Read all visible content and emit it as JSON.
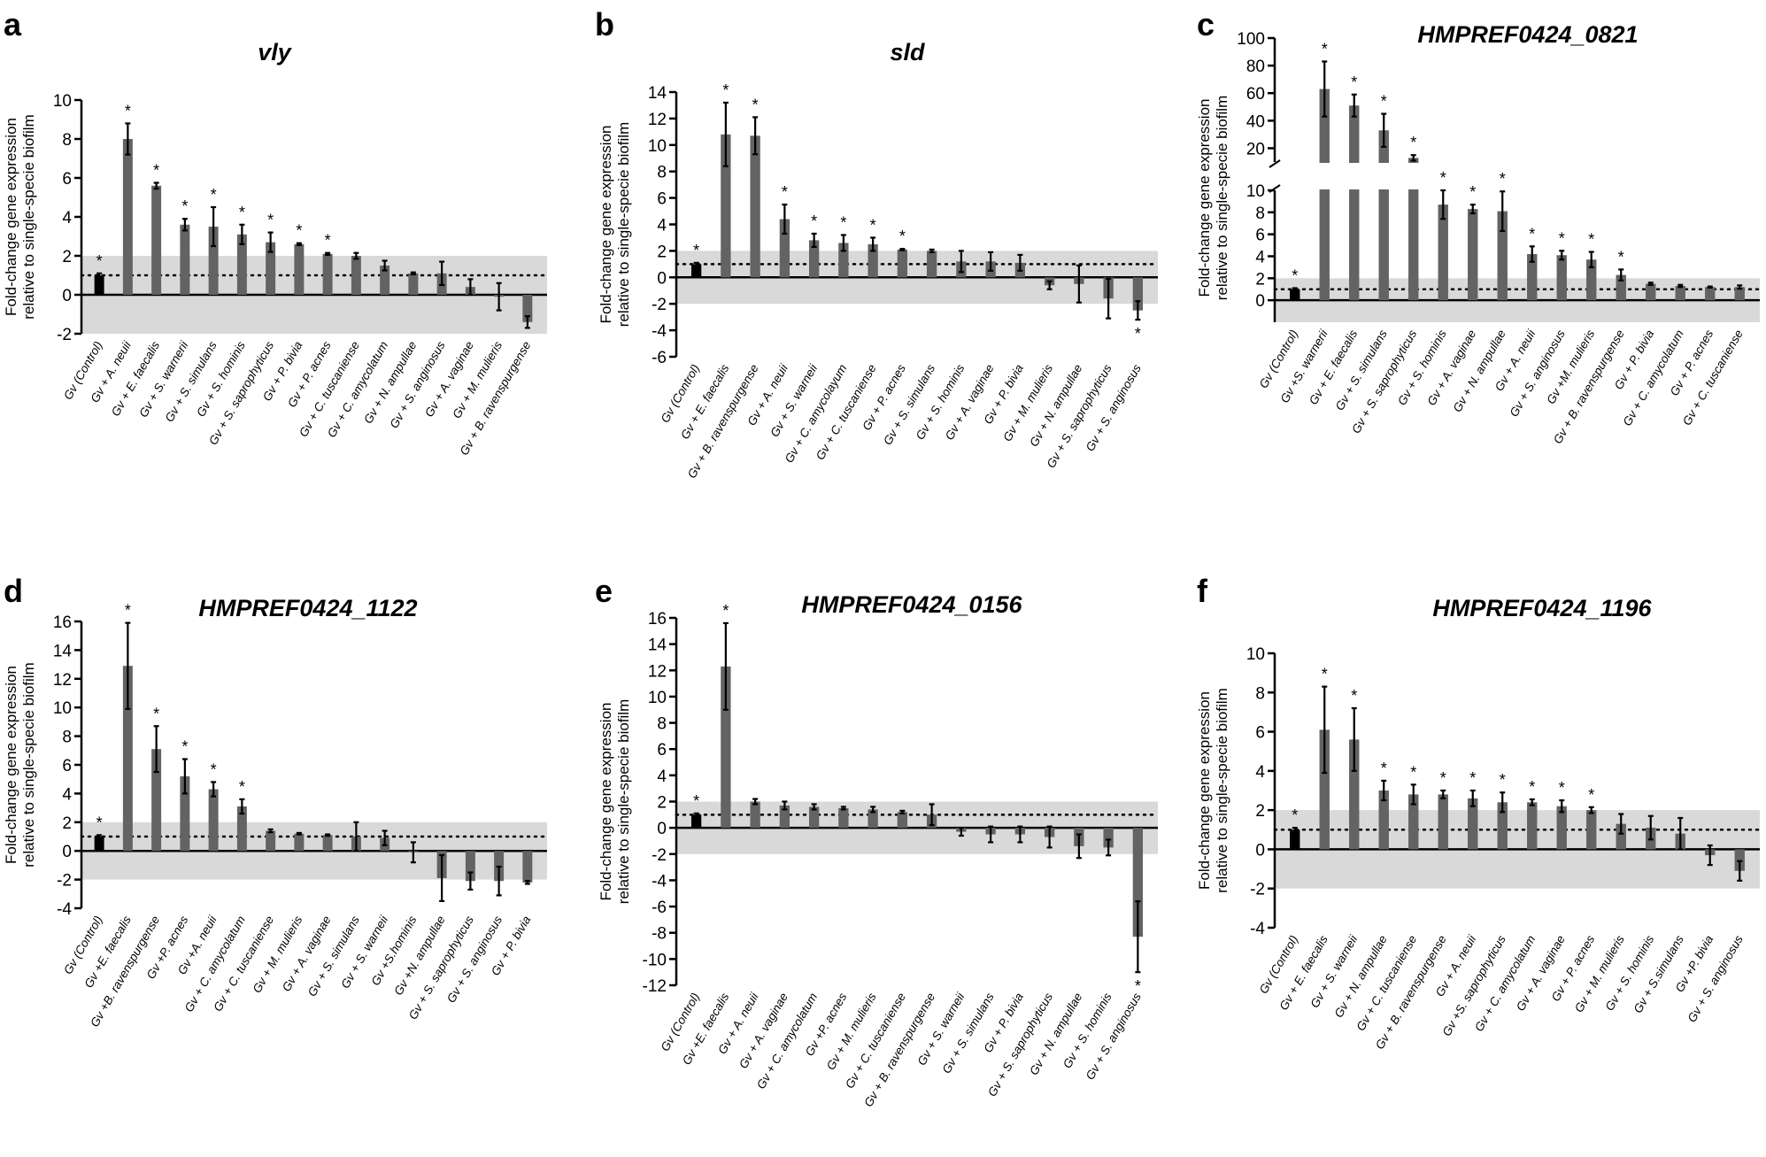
{
  "chart_data": [
    {
      "type": "bar",
      "panel_letter": "a",
      "title": "vly",
      "ylabel_lines": [
        "Fold-change gene expression",
        "relative to single-specie biofilm"
      ],
      "ylim": [
        -2,
        10
      ],
      "yticks": [
        -2,
        0,
        2,
        4,
        6,
        8,
        10
      ],
      "categories": [
        "Gv (Control)",
        "Gv + A. neuii",
        "Gv + E. faecalis",
        "Gv + S. warnerii",
        "Gv + S. simulans",
        "Gv + S. hominis",
        "Gv + S. saprophyticus",
        "Gv + P. bivia",
        "Gv + P. acnes",
        "Gv + C. tuscaniense",
        "Gv + C. amycolatum",
        "Gv + N. ampullae",
        "Gv + S. anginosus",
        "Gv + A. vaginae",
        "Gv + M. mulieris",
        "Gv + B. ravenspurgense"
      ],
      "values": [
        1.0,
        8.0,
        5.6,
        3.6,
        3.5,
        3.1,
        2.7,
        2.6,
        2.1,
        2.0,
        1.5,
        1.1,
        1.1,
        0.4,
        -0.1,
        -1.4
      ],
      "errors": [
        0.1,
        0.8,
        0.15,
        0.3,
        1.0,
        0.5,
        0.5,
        0.05,
        0.05,
        0.15,
        0.25,
        0.05,
        0.6,
        0.4,
        0.7,
        0.3
      ],
      "significant": [
        true,
        true,
        true,
        true,
        true,
        true,
        true,
        true,
        true,
        false,
        false,
        false,
        false,
        false,
        false,
        false
      ],
      "star_label": "*",
      "reference_line": 1,
      "shaded_band": [
        -2,
        2
      ]
    },
    {
      "type": "bar",
      "panel_letter": "b",
      "title": "sld",
      "ylabel_lines": [
        "Fold-change gene expression",
        "relative to single-specie biofilm"
      ],
      "ylim": [
        -6,
        14
      ],
      "yticks": [
        -6,
        -4,
        -2,
        0,
        2,
        4,
        6,
        8,
        10,
        12,
        14
      ],
      "categories": [
        "Gv (Control)",
        "Gv + E. faecalis",
        "Gv + B. ravenspurgense",
        "Gv + A. neuii",
        "Gv + S. warneii",
        "Gv + C. amycolayum",
        "Gv + C. tuscaniense",
        "Gv + P. acnes",
        "Gv + S. simulans",
        "Gv + S. hominis",
        "Gv + A. vaginae",
        "Gv + P. bivia",
        "Gv + M. mulieris",
        "Gv + N. ampullae",
        "Gv + S. saprophyticus",
        "Gv + S. anginosus"
      ],
      "values": [
        1.0,
        10.8,
        10.7,
        4.4,
        2.8,
        2.6,
        2.5,
        2.1,
        2.0,
        1.2,
        1.2,
        1.1,
        -0.6,
        -0.5,
        -1.6,
        -2.5
      ],
      "errors": [
        0.1,
        2.4,
        1.4,
        1.1,
        0.5,
        0.6,
        0.5,
        0.05,
        0.1,
        0.8,
        0.7,
        0.6,
        0.3,
        1.4,
        1.5,
        0.7
      ],
      "significant": [
        true,
        true,
        true,
        true,
        true,
        true,
        true,
        true,
        false,
        false,
        false,
        false,
        false,
        false,
        false,
        true
      ],
      "star_label": "*",
      "reference_line": 1,
      "shaded_band": [
        -2,
        2
      ]
    },
    {
      "type": "bar",
      "panel_letter": "c",
      "title": "HMPREF0424_0821",
      "ylabel_lines": [
        "Fold-change gene expression",
        "relative to single-specie biofilm"
      ],
      "axis_break": true,
      "lower_ylim": [
        -2,
        10
      ],
      "lower_yticks": [
        0,
        2,
        4,
        6,
        8,
        10
      ],
      "upper_ylim": [
        10,
        100
      ],
      "upper_yticks": [
        20,
        40,
        60,
        80,
        100
      ],
      "categories": [
        "Gv (Control)",
        "Gv +S. warnerii",
        "Gv + E. faecalis",
        "Gv + S. simulans",
        "Gv + S. saprophyticus",
        "Gv + S. hominis",
        "Gv + A. vaginae",
        "Gv + N. ampullae",
        "Gv + A. neuii",
        "Gv + S. anginosus",
        "Gv +M. mulieris",
        "Gv + B. ravenspurgense",
        "Gv + P. bivia",
        "Gv + C. amycolatum",
        "Gv + P. acnes",
        "Gv + C. tuscaniense"
      ],
      "values": [
        1.0,
        63,
        51,
        33,
        13,
        8.7,
        8.3,
        8.1,
        4.2,
        4.1,
        3.7,
        2.3,
        1.5,
        1.3,
        1.2,
        1.2
      ],
      "errors": [
        0.1,
        20,
        8,
        12,
        2,
        1.3,
        0.4,
        1.8,
        0.7,
        0.4,
        0.7,
        0.5,
        0.1,
        0.1,
        0.05,
        0.15
      ],
      "significant": [
        true,
        true,
        true,
        true,
        true,
        true,
        true,
        true,
        true,
        true,
        true,
        true,
        false,
        false,
        false,
        false
      ],
      "star_label": "*",
      "reference_line": 1,
      "shaded_band": [
        -2,
        2
      ]
    },
    {
      "type": "bar",
      "panel_letter": "d",
      "title": "HMPREF0424_1122",
      "ylabel_lines": [
        "Fold-change gene expression",
        "relative to single-specie biofilm"
      ],
      "ylim": [
        -4,
        16
      ],
      "yticks": [
        -4,
        -2,
        0,
        2,
        4,
        6,
        8,
        10,
        12,
        14,
        16
      ],
      "categories": [
        "Gv (Control)",
        "Gv +E. faecalis",
        "Gv +B. ravenspurgense",
        "Gv +P. acnes",
        "Gv +A. neuii",
        "Gv + C. amycolatum",
        "Gv + C. tuscaniense",
        "Gv + M. mulieris",
        "Gv + A. vaginae",
        "Gv + S. simulans",
        "Gv + S. warneii",
        "Gv +S.hominis",
        "Gv +N. ampullae",
        "Gv + S. saprophyticus",
        "Gv + S. anginosus",
        "Gv + P. bivia"
      ],
      "values": [
        1.0,
        12.9,
        7.1,
        5.2,
        4.3,
        3.1,
        1.4,
        1.2,
        1.1,
        1.0,
        0.9,
        -0.1,
        -1.9,
        -2.1,
        -2.1,
        -2.2
      ],
      "errors": [
        0.1,
        3.0,
        1.6,
        1.2,
        0.5,
        0.5,
        0.1,
        0.05,
        0.05,
        1.0,
        0.5,
        0.7,
        1.6,
        0.6,
        1.0,
        0.1
      ],
      "significant": [
        true,
        true,
        true,
        true,
        true,
        true,
        false,
        false,
        false,
        false,
        false,
        false,
        false,
        false,
        false,
        false
      ],
      "star_label": "*",
      "reference_line": 1,
      "shaded_band": [
        -2,
        2
      ]
    },
    {
      "type": "bar",
      "panel_letter": "e",
      "title": "HMPREF0424_0156",
      "ylabel_lines": [
        "Fold-change gene expression",
        "relative to single-specie biofilm"
      ],
      "ylim": [
        -12,
        16
      ],
      "yticks": [
        -12,
        -10,
        -8,
        -6,
        -4,
        -2,
        0,
        2,
        4,
        6,
        8,
        10,
        12,
        14,
        16
      ],
      "categories": [
        "Gv (Control)",
        "Gv +E. faecalis",
        "Gv + A. neuii",
        "Gv + A. vaginae",
        "Gv + C. amycolatum",
        "Gv +P. acnes",
        "Gv + M. mulieris",
        "Gv + C. tuscaniense",
        "Gv + B. ravenspurgense",
        "Gv + S. warneii",
        "Gv + S. simulans",
        "Gv + P. bivia",
        "Gv + S. saprophyticus",
        "Gv + N. ampullae",
        "Gv + S. hominis",
        "Gv + S. anginosus"
      ],
      "values": [
        1.0,
        12.3,
        2.0,
        1.7,
        1.6,
        1.5,
        1.4,
        1.2,
        1.0,
        -0.3,
        -0.5,
        -0.5,
        -0.7,
        -1.4,
        -1.5,
        -8.3
      ],
      "errors": [
        0.1,
        3.3,
        0.2,
        0.3,
        0.2,
        0.1,
        0.2,
        0.1,
        0.8,
        0.3,
        0.6,
        0.6,
        0.8,
        0.9,
        0.6,
        2.7
      ],
      "significant": [
        true,
        true,
        false,
        false,
        false,
        false,
        false,
        false,
        false,
        false,
        false,
        false,
        false,
        false,
        false,
        true
      ],
      "star_label": "*",
      "reference_line": 1,
      "shaded_band": [
        -2,
        2
      ]
    },
    {
      "type": "bar",
      "panel_letter": "f",
      "title": "HMPREF0424_1196",
      "ylabel_lines": [
        "Fold-change gene expression",
        "relative to single-specie biofilm"
      ],
      "ylim": [
        -4,
        10
      ],
      "yticks": [
        -4,
        -2,
        0,
        2,
        4,
        6,
        8,
        10
      ],
      "categories": [
        "Gv (Control)",
        "Gv + E. faecalis",
        "Gv + S. warneii",
        "Gv + N. ampullae",
        "Gv + C. tuscaniense",
        "Gv + B. ravenspurgense",
        "Gv + A. neuii",
        "Gv +S. saprophyticus",
        "Gv + C. amycolatum",
        "Gv + A. vaginae",
        "Gv + P. acnes",
        "Gv + M. mulieris",
        "Gv + S. hominis",
        "Gv + S.simulans",
        "Gv +P. bivia",
        "Gv + S. anginosus"
      ],
      "values": [
        1.0,
        6.1,
        5.6,
        3.0,
        2.8,
        2.8,
        2.6,
        2.4,
        2.4,
        2.2,
        2.0,
        1.3,
        1.1,
        0.8,
        -0.3,
        -1.1
      ],
      "errors": [
        0.1,
        2.2,
        1.6,
        0.5,
        0.5,
        0.2,
        0.4,
        0.5,
        0.15,
        0.3,
        0.15,
        0.5,
        0.6,
        0.8,
        0.5,
        0.5
      ],
      "significant": [
        true,
        true,
        true,
        true,
        true,
        true,
        true,
        true,
        true,
        true,
        true,
        false,
        false,
        false,
        false,
        false
      ],
      "star_label": "*",
      "reference_line": 1,
      "shaded_band": [
        -2,
        2
      ]
    }
  ]
}
